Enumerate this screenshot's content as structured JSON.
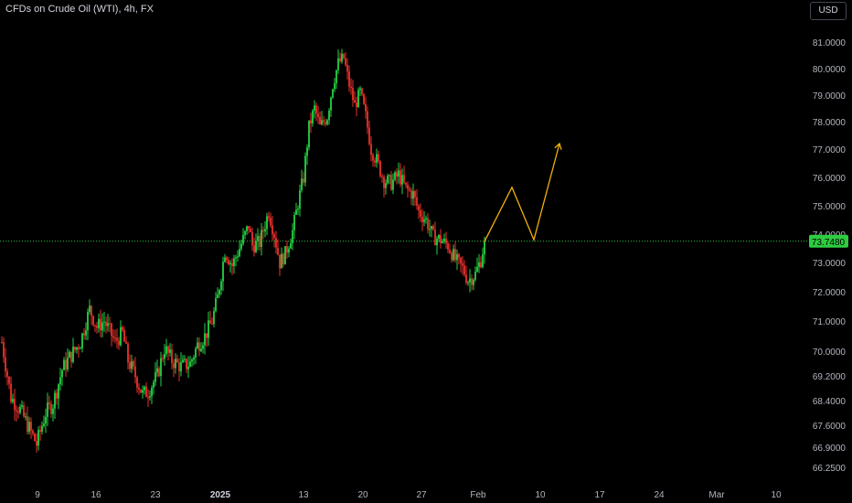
{
  "header": {
    "title": "CFDs on Crude Oil (WTI), 4h, FX",
    "currency": "USD"
  },
  "colors": {
    "up": "#26d245",
    "down": "#e8322b",
    "arrow": "#f0b10a",
    "last": "#2ecc40"
  },
  "chart_data": {
    "type": "candlestick",
    "symbol": "CFDs on Crude Oil (WTI)",
    "interval": "4h",
    "source": "FX",
    "currency": "USD",
    "price_scale_ticks": [
      "81.0000",
      "80.0000",
      "79.0000",
      "78.0000",
      "77.0000",
      "76.0000",
      "75.0000",
      "74.0000",
      "73.0000",
      "72.0000",
      "71.0000",
      "70.0000",
      "69.2000",
      "68.4000",
      "67.6000",
      "66.9000",
      "66.2500"
    ],
    "time_axis_labels": [
      {
        "label": "9",
        "bold": false
      },
      {
        "label": "16",
        "bold": false
      },
      {
        "label": "23",
        "bold": false
      },
      {
        "label": "2025",
        "bold": true
      },
      {
        "label": "13",
        "bold": false
      },
      {
        "label": "20",
        "bold": false
      },
      {
        "label": "27",
        "bold": false
      },
      {
        "label": "Feb",
        "bold": false
      },
      {
        "label": "10",
        "bold": false
      },
      {
        "label": "17",
        "bold": false
      },
      {
        "label": "24",
        "bold": false
      },
      {
        "label": "Mar",
        "bold": false
      },
      {
        "label": "10",
        "bold": false
      }
    ],
    "last_price": "73.7480",
    "price_path_anchors": [
      [
        0,
        70.3
      ],
      [
        5,
        68.5
      ],
      [
        10,
        68.1
      ],
      [
        15,
        67.5
      ],
      [
        19,
        67.0
      ],
      [
        24,
        68.0
      ],
      [
        28,
        68.3
      ],
      [
        33,
        69.4
      ],
      [
        37,
        69.8
      ],
      [
        43,
        70.3
      ],
      [
        48,
        71.4
      ],
      [
        52,
        70.8
      ],
      [
        56,
        71.0
      ],
      [
        62,
        70.3
      ],
      [
        66,
        70.6
      ],
      [
        69,
        69.7
      ],
      [
        73,
        69.2
      ],
      [
        77,
        68.6
      ],
      [
        80,
        68.7
      ],
      [
        85,
        69.2
      ],
      [
        89,
        70.1
      ],
      [
        93,
        69.7
      ],
      [
        98,
        69.5
      ],
      [
        103,
        69.6
      ],
      [
        107,
        70.2
      ],
      [
        111,
        70.5
      ],
      [
        115,
        71.0
      ],
      [
        118,
        71.8
      ],
      [
        122,
        73.4
      ],
      [
        126,
        72.9
      ],
      [
        130,
        73.5
      ],
      [
        135,
        74.3
      ],
      [
        137,
        73.6
      ],
      [
        141,
        73.7
      ],
      [
        146,
        74.8
      ],
      [
        149,
        74.0
      ],
      [
        152,
        73.0
      ],
      [
        155,
        73.3
      ],
      [
        159,
        74.1
      ],
      [
        162,
        75.1
      ],
      [
        165,
        76.0
      ],
      [
        168,
        77.8
      ],
      [
        171,
        78.5
      ],
      [
        174,
        77.8
      ],
      [
        178,
        78.2
      ],
      [
        181,
        79.4
      ],
      [
        184,
        80.2
      ],
      [
        187,
        80.4
      ],
      [
        190,
        79.4
      ],
      [
        193,
        78.6
      ],
      [
        196,
        79.1
      ],
      [
        199,
        78.2
      ],
      [
        202,
        77.0
      ],
      [
        205,
        76.6
      ],
      [
        209,
        75.9
      ],
      [
        213,
        75.8
      ],
      [
        217,
        76.1
      ],
      [
        221,
        75.6
      ],
      [
        225,
        75.4
      ],
      [
        228,
        74.8
      ],
      [
        232,
        74.5
      ],
      [
        236,
        73.9
      ],
      [
        240,
        73.8
      ],
      [
        244,
        73.6
      ],
      [
        248,
        73.1
      ],
      [
        252,
        72.8
      ],
      [
        255,
        72.4
      ],
      [
        259,
        72.6
      ],
      [
        262,
        73.1
      ],
      [
        264,
        73.74
      ]
    ],
    "projection_path": [
      [
        264,
        73.74
      ],
      [
        279,
        75.65
      ],
      [
        291,
        73.8
      ],
      [
        305,
        77.2
      ]
    ],
    "projection_arrow": true
  }
}
